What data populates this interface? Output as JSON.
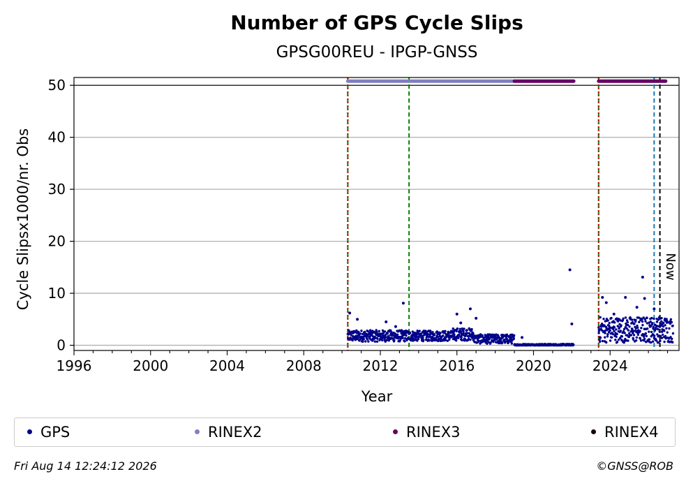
{
  "chart_data": {
    "type": "scatter",
    "title": "Number of GPS Cycle Slips",
    "subtitle": "GPSG00REU - IPGP-GNSS",
    "xlabel": "Year",
    "ylabel": "Cycle Slipsx1000/nr. Obs",
    "xlim": [
      1996,
      2027.6
    ],
    "ylim": [
      -1,
      51.5
    ],
    "x_ticks": [
      1996,
      2000,
      2004,
      2008,
      2012,
      2016,
      2020,
      2024
    ],
    "y_ticks": [
      0,
      10,
      20,
      30,
      40,
      50
    ],
    "grid": "horizontal",
    "legend_position": "bottom",
    "series": [
      {
        "name": "GPS",
        "color": "#00008b",
        "segments": [
          {
            "x_start": 2010.3,
            "x_end": 2013.5,
            "mean": 1.8,
            "spread": 1.1
          },
          {
            "x_start": 2013.5,
            "x_end": 2015.8,
            "mean": 1.8,
            "spread": 1.0
          },
          {
            "x_start": 2015.8,
            "x_end": 2016.9,
            "mean": 2.1,
            "spread": 1.2
          },
          {
            "x_start": 2016.9,
            "x_end": 2019.0,
            "mean": 1.2,
            "spread": 0.9
          },
          {
            "x_start": 2019.0,
            "x_end": 2022.1,
            "mean": 0.05,
            "spread": 0.2
          },
          {
            "x_start": 2023.4,
            "x_end": 2027.3,
            "mean": 3.0,
            "spread": 2.5
          }
        ],
        "outliers": [
          {
            "x": 2010.4,
            "y": 6.2
          },
          {
            "x": 2010.8,
            "y": 5.0
          },
          {
            "x": 2012.3,
            "y": 4.5
          },
          {
            "x": 2012.8,
            "y": 3.6
          },
          {
            "x": 2013.2,
            "y": 8.1
          },
          {
            "x": 2016.0,
            "y": 6.0
          },
          {
            "x": 2016.2,
            "y": 4.3
          },
          {
            "x": 2016.7,
            "y": 7.0
          },
          {
            "x": 2017.0,
            "y": 5.2
          },
          {
            "x": 2019.4,
            "y": 1.5
          },
          {
            "x": 2021.9,
            "y": 14.5
          },
          {
            "x": 2022.0,
            "y": 4.1
          },
          {
            "x": 2023.6,
            "y": 9.2
          },
          {
            "x": 2023.8,
            "y": 8.2
          },
          {
            "x": 2024.2,
            "y": 6.0
          },
          {
            "x": 2024.8,
            "y": 9.2
          },
          {
            "x": 2025.4,
            "y": 7.3
          },
          {
            "x": 2025.7,
            "y": 13.1
          },
          {
            "x": 2025.8,
            "y": 9.0
          },
          {
            "x": 2026.3,
            "y": 7.0
          }
        ]
      },
      {
        "name": "RINEX2",
        "color": "#8080c0",
        "y": 50.8,
        "x_start": 2010.3,
        "x_end": 2019.0
      },
      {
        "name": "RINEX3",
        "color": "#660066",
        "y": 50.8,
        "ranges": [
          [
            2019.0,
            2022.1
          ],
          [
            2023.4,
            2026.9
          ]
        ]
      },
      {
        "name": "RINEX4",
        "color": "#1a0010",
        "y": 50.8,
        "ranges": []
      }
    ],
    "vertical_lines": [
      {
        "x": 2010.3,
        "color": "#008000",
        "style": "dashed"
      },
      {
        "x": 2010.3,
        "color": "#cc0000",
        "style": "dotted"
      },
      {
        "x": 2013.5,
        "color": "#008000",
        "style": "dashed"
      },
      {
        "x": 2023.4,
        "color": "#008000",
        "style": "dashed"
      },
      {
        "x": 2023.4,
        "color": "#cc0000",
        "style": "dotted"
      },
      {
        "x": 2026.3,
        "color": "#1f77b4",
        "style": "dashed"
      },
      {
        "x": 2026.6,
        "color": "#000000",
        "style": "dashed"
      }
    ],
    "now_label": "Now",
    "now_x": 2026.6
  },
  "legend": [
    {
      "label": "GPS",
      "color": "#00008b"
    },
    {
      "label": "RINEX2",
      "color": "#8080c0"
    },
    {
      "label": "RINEX3",
      "color": "#660066"
    },
    {
      "label": "RINEX4",
      "color": "#1a0010"
    }
  ],
  "footer": {
    "timestamp": "Fri Aug 14 12:24:12 2026",
    "credit": "©GNSS@ROB"
  }
}
